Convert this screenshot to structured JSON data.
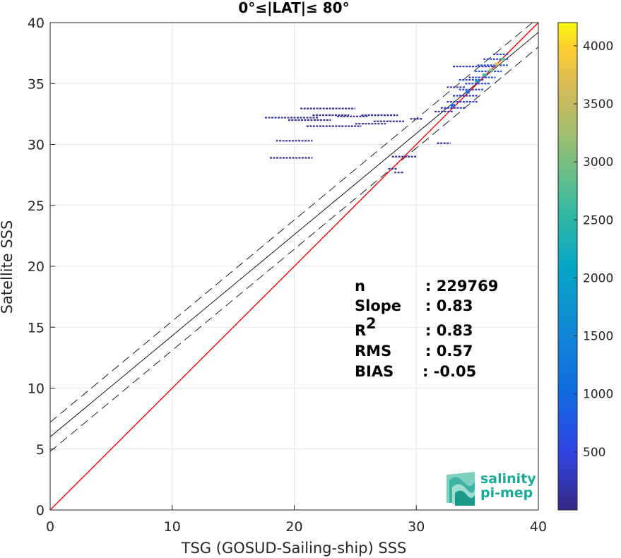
{
  "chart_data": {
    "type": "scatter",
    "title": "0°≤|LAT|≤ 80°",
    "xlabel": "TSG (GOSUD-Sailing-ship) SSS",
    "ylabel": "Satellite SSS",
    "xlim": [
      0,
      40
    ],
    "ylim": [
      0,
      40
    ],
    "xticks": [
      "0",
      "10",
      "20",
      "30",
      "40"
    ],
    "yticks": [
      "0",
      "5",
      "10",
      "15",
      "20",
      "25",
      "30",
      "35",
      "40"
    ],
    "grid": true,
    "lines": {
      "identity": {
        "slope": 1,
        "intercept": 0,
        "color": "#ff0000"
      },
      "fit": {
        "slope": 0.83,
        "intercept": 6.0,
        "color": "#000000"
      },
      "fit_upper": {
        "slope": 0.83,
        "intercept": 7.2,
        "color": "#000000",
        "dash": true
      },
      "fit_lower": {
        "slope": 0.83,
        "intercept": 4.8,
        "color": "#000000",
        "dash": true
      }
    },
    "density_segments": [
      {
        "x1": 17.6,
        "x2": 22.0,
        "y": 32.2,
        "c": 120
      },
      {
        "x1": 20.5,
        "x2": 25.0,
        "y": 32.95,
        "c": 80
      },
      {
        "x1": 21.5,
        "x2": 24.5,
        "y": 32.4,
        "c": 60
      },
      {
        "x1": 23.5,
        "x2": 26.0,
        "y": 32.3,
        "c": 60
      },
      {
        "x1": 25.5,
        "x2": 28.5,
        "y": 32.4,
        "c": 150
      },
      {
        "x1": 19.5,
        "x2": 23.0,
        "y": 32.0,
        "c": 60
      },
      {
        "x1": 21.0,
        "x2": 25.5,
        "y": 31.5,
        "c": 40
      },
      {
        "x1": 25.0,
        "x2": 27.5,
        "y": 31.7,
        "c": 60
      },
      {
        "x1": 26.5,
        "x2": 29.0,
        "y": 31.9,
        "c": 90
      },
      {
        "x1": 18.5,
        "x2": 21.5,
        "y": 30.3,
        "c": 60
      },
      {
        "x1": 18.0,
        "x2": 21.5,
        "y": 28.9,
        "c": 60
      },
      {
        "x1": 28.0,
        "x2": 30.0,
        "y": 29.0,
        "c": 60
      },
      {
        "x1": 27.7,
        "x2": 28.4,
        "y": 28.0,
        "c": 60
      },
      {
        "x1": 28.2,
        "x2": 29.0,
        "y": 27.7,
        "c": 60
      },
      {
        "x1": 29.5,
        "x2": 30.5,
        "y": 32.1,
        "c": 90
      },
      {
        "x1": 31.7,
        "x2": 32.8,
        "y": 30.1,
        "c": 60
      },
      {
        "x1": 31.5,
        "x2": 33.0,
        "y": 32.7,
        "c": 200
      },
      {
        "x1": 32.0,
        "x2": 34.0,
        "y": 33.0,
        "c": 250
      },
      {
        "x1": 32.5,
        "x2": 35.0,
        "y": 33.5,
        "c": 300
      },
      {
        "x1": 33.0,
        "x2": 35.0,
        "y": 34.0,
        "c": 350
      },
      {
        "x1": 33.5,
        "x2": 35.5,
        "y": 34.5,
        "c": 400
      },
      {
        "x1": 32.5,
        "x2": 34.0,
        "y": 34.7,
        "c": 200
      },
      {
        "x1": 34.0,
        "x2": 36.0,
        "y": 35.0,
        "c": 500
      },
      {
        "x1": 34.3,
        "x2": 36.5,
        "y": 35.5,
        "c": 600
      },
      {
        "x1": 34.8,
        "x2": 37.0,
        "y": 36.0,
        "c": 700
      },
      {
        "x1": 35.0,
        "x2": 37.5,
        "y": 36.5,
        "c": 700
      },
      {
        "x1": 33.0,
        "x2": 36.5,
        "y": 36.4,
        "c": 300
      },
      {
        "x1": 35.5,
        "x2": 37.6,
        "y": 37.0,
        "c": 500
      },
      {
        "x1": 36.3,
        "x2": 37.6,
        "y": 37.4,
        "c": 400
      },
      {
        "x1": 33.5,
        "x2": 35.5,
        "y": 35.3,
        "c": 350
      }
    ],
    "density_hotspots": [
      {
        "x": 33.0,
        "y": 33.2,
        "c": 1000
      },
      {
        "x": 34.2,
        "y": 34.3,
        "c": 1200
      },
      {
        "x": 35.0,
        "y": 35.2,
        "c": 2000
      },
      {
        "x": 35.6,
        "y": 35.7,
        "c": 2600
      },
      {
        "x": 36.1,
        "y": 36.1,
        "c": 3200
      },
      {
        "x": 36.6,
        "y": 36.6,
        "c": 3800
      },
      {
        "x": 37.1,
        "y": 37.0,
        "c": 3000
      }
    ],
    "stats": [
      {
        "name": "n",
        "value": ": 229769"
      },
      {
        "name": "Slope",
        "value": ": 0.83"
      },
      {
        "name": "R",
        "sup": "2",
        "value": ": 0.83"
      },
      {
        "name": "RMS",
        "value": ": 0.57"
      },
      {
        "name": "BIAS",
        "value": ": -0.05"
      }
    ],
    "colorbar": {
      "min": 0,
      "max": 4200,
      "ticks": [
        "500",
        "1000",
        "1500",
        "2000",
        "2500",
        "3000",
        "3500",
        "4000"
      ],
      "colormap": "parula"
    }
  },
  "logo": {
    "line1": "salinity",
    "line2": "pi-mep",
    "color": "#1ba99a"
  }
}
